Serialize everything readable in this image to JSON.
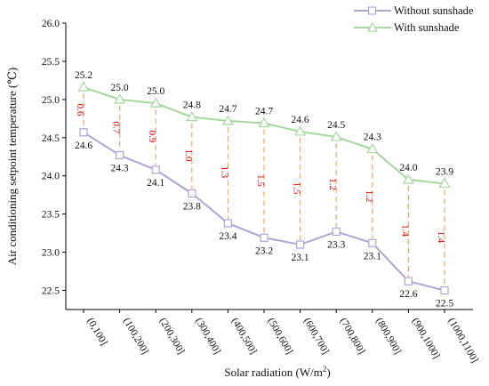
{
  "chart_data": {
    "type": "line",
    "categories": [
      "(0,100]",
      "(100,200]",
      "(200,300]",
      "(300,400]",
      "(400,500]",
      "(500,600]",
      "(600,700]",
      "(700,800]",
      "(800,900]",
      "(900,1000]",
      "(1000,1100]"
    ],
    "series": [
      {
        "name": "Without sunshade",
        "values": [
          24.57,
          24.27,
          24.08,
          23.77,
          23.38,
          23.19,
          23.1,
          23.27,
          23.12,
          22.62,
          22.5
        ],
        "labels": [
          "24.6",
          "24.3",
          "24.1",
          "23.8",
          "23.4",
          "23.2",
          "23.1",
          "23.3",
          "23.1",
          "22.6",
          "22.5"
        ],
        "color": "#b0a4d4",
        "marker": "square"
      },
      {
        "name": "With sunshade",
        "values": [
          25.16,
          25.0,
          24.95,
          24.77,
          24.72,
          24.69,
          24.58,
          24.51,
          24.35,
          23.95,
          23.9
        ],
        "labels": [
          "25.2",
          "25.0",
          "25.0",
          "24.8",
          "24.7",
          "24.7",
          "24.6",
          "24.5",
          "24.3",
          "24.0",
          "23.9"
        ],
        "color": "#a6d69e",
        "marker": "triangle"
      }
    ],
    "differences": [
      "0.6",
      "0.7",
      "0.9",
      "1.0",
      "1.3",
      "1.5",
      "1.5",
      "1.2",
      "1.2",
      "1.4",
      "1.4"
    ],
    "difference_color": "#f4a46a",
    "difference_label_color": "#e00000",
    "xlabel": "Solar radiation (W/m²)",
    "ylabel": "Air conditioning setpoint temperature (℃)",
    "ylim": [
      22.25,
      26.0
    ],
    "yticks": [
      "22.5",
      "23.0",
      "23.5",
      "24.0",
      "24.5",
      "25.0",
      "25.5",
      "26.0"
    ],
    "legend_position": "top-right",
    "grid": false
  }
}
